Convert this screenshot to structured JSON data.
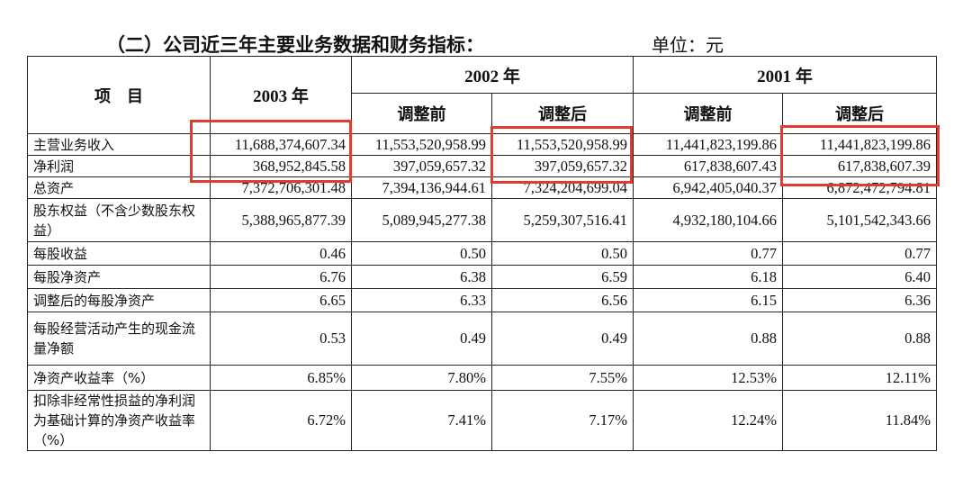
{
  "title": "（二）公司近三年主要业务数据和财务指标：",
  "unit": "单位：元",
  "header": {
    "item": "项　目",
    "y2003": "2003 年",
    "y2002": "2002 年",
    "y2001": "2001 年",
    "before": "调整前",
    "after": "调整后"
  },
  "rows": [
    {
      "label": "主营业务收入",
      "values": [
        "11,688,374,607.34",
        "11,553,520,958.99",
        "11,553,520,958.99",
        "11,441,823,199.86",
        "11,441,823,199.86"
      ]
    },
    {
      "label": "净利润",
      "values": [
        "368,952,845.58",
        "397,059,657.32",
        "397,059,657.32",
        "617,838,607.43",
        "617,838,607.39"
      ]
    },
    {
      "label": "总资产",
      "values": [
        "7,372,706,301.48",
        "7,394,136,944.61",
        "7,324,204,699.04",
        "6,942,405,040.37",
        "6,872,472,794.81"
      ]
    },
    {
      "label": "股东权益（不含少数股东权益）",
      "values": [
        "5,388,965,877.39",
        "5,089,945,277.38",
        "5,259,307,516.41",
        "4,932,180,104.66",
        "5,101,542,343.66"
      ]
    },
    {
      "label": "每股收益",
      "values": [
        "0.46",
        "0.50",
        "0.50",
        "0.77",
        "0.77"
      ]
    },
    {
      "label": "每股净资产",
      "values": [
        "6.76",
        "6.38",
        "6.59",
        "6.18",
        "6.40"
      ]
    },
    {
      "label": "调整后的每股净资产",
      "values": [
        "6.65",
        "6.33",
        "6.56",
        "6.15",
        "6.36"
      ]
    },
    {
      "label": "每股经营活动产生的现金流量净额",
      "values": [
        "0.53",
        "0.49",
        "0.49",
        "0.88",
        "0.88"
      ]
    },
    {
      "label": "净资产收益率（%）",
      "values": [
        "6.85%",
        "7.80%",
        "7.55%",
        "12.53%",
        "12.11%"
      ]
    },
    {
      "label": "扣除非经常性损益的净利润为基础计算的净资产收益率（%）",
      "values": [
        "6.72%",
        "7.41%",
        "7.17%",
        "12.24%",
        "11.84%"
      ]
    }
  ],
  "highlight_color": "#e03a33"
}
